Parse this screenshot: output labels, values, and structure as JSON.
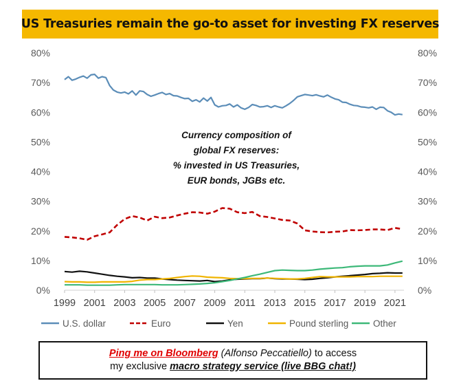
{
  "header": {
    "title": "US Treasuries remain the go-to asset for investing FX reserves"
  },
  "chart_data": {
    "type": "line",
    "title": "US Treasuries remain the go-to asset for investing FX reserves",
    "annotation": [
      "Currency composition of",
      "global FX reserves:",
      "% invested in US Treasuries,",
      "EUR bonds, JGBs etc."
    ],
    "x_ticks": [
      "1999",
      "2001",
      "2003",
      "2005",
      "2007",
      "2009",
      "2011",
      "2013",
      "2015",
      "2017",
      "2019",
      "2021"
    ],
    "y_ticks": [
      "0%",
      "10%",
      "20%",
      "30%",
      "40%",
      "50%",
      "60%",
      "70%",
      "80%"
    ],
    "xlim": [
      1999,
      2021.6
    ],
    "ylim": [
      0,
      80
    ],
    "legend_position": "bottom",
    "series": [
      {
        "name": "U.S. dollar",
        "color": "#5b8db8",
        "dash": "solid",
        "x": [
          1999,
          1999.25,
          1999.5,
          1999.75,
          2000,
          2000.25,
          2000.5,
          2000.75,
          2001,
          2001.25,
          2001.5,
          2001.75,
          2002,
          2002.25,
          2002.5,
          2002.75,
          2003,
          2003.25,
          2003.5,
          2003.75,
          2004,
          2004.25,
          2004.5,
          2004.75,
          2005,
          2005.25,
          2005.5,
          2005.75,
          2006,
          2006.25,
          2006.5,
          2006.75,
          2007,
          2007.25,
          2007.5,
          2007.75,
          2008,
          2008.25,
          2008.5,
          2008.75,
          2009,
          2009.25,
          2009.5,
          2009.75,
          2010,
          2010.25,
          2010.5,
          2010.75,
          2011,
          2011.25,
          2011.5,
          2011.75,
          2012,
          2012.25,
          2012.5,
          2012.75,
          2013,
          2013.25,
          2013.5,
          2013.75,
          2014,
          2014.25,
          2014.5,
          2014.75,
          2015,
          2015.25,
          2015.5,
          2015.75,
          2016,
          2016.25,
          2016.5,
          2016.75,
          2017,
          2017.25,
          2017.5,
          2017.75,
          2018,
          2018.25,
          2018.5,
          2018.75,
          2019,
          2019.25,
          2019.5,
          2019.75,
          2020,
          2020.25,
          2020.5,
          2020.75,
          2021,
          2021.25,
          2021.5
        ],
        "values": [
          71,
          72,
          70.8,
          71.2,
          71.8,
          72.2,
          71.5,
          72.6,
          72.8,
          71.5,
          72,
          71.7,
          69,
          67.5,
          66.8,
          66.5,
          66.8,
          66.2,
          67.2,
          65.8,
          67.2,
          67,
          66,
          65.4,
          65.8,
          66.3,
          66.7,
          66,
          66.3,
          65.6,
          65.5,
          65,
          64.6,
          64.7,
          63.7,
          64.2,
          63.5,
          64.8,
          63.8,
          65,
          62.5,
          61.8,
          62.2,
          62.3,
          62.8,
          61.8,
          62.5,
          61.5,
          61,
          61.6,
          62.6,
          62.3,
          61.8,
          61.9,
          62.2,
          61.6,
          62.2,
          61.8,
          61.5,
          62.2,
          63,
          64,
          65.2,
          65.6,
          66,
          65.8,
          65.6,
          65.9,
          65.5,
          65.2,
          65.8,
          65.1,
          64.5,
          64.2,
          63.4,
          63.3,
          62.7,
          62.3,
          62.2,
          61.8,
          61.7,
          61.5,
          61.8,
          61,
          61.7,
          61.6,
          60.5,
          60,
          59.1,
          59.4,
          59.2
        ]
      },
      {
        "name": "Euro",
        "color": "#c00000",
        "dash": "dashed",
        "x": [
          1999,
          1999.5,
          2000,
          2000.5,
          2001,
          2001.5,
          2002,
          2002.5,
          2003,
          2003.5,
          2004,
          2004.5,
          2005,
          2005.5,
          2006,
          2006.5,
          2007,
          2007.5,
          2008,
          2008.5,
          2009,
          2009.5,
          2010,
          2010.5,
          2011,
          2011.5,
          2012,
          2012.5,
          2013,
          2013.5,
          2014,
          2014.5,
          2015,
          2015.5,
          2016,
          2016.5,
          2017,
          2017.5,
          2018,
          2018.5,
          2019,
          2019.5,
          2020,
          2020.5,
          2021,
          2021.5
        ],
        "values": [
          18,
          17.8,
          17.5,
          17,
          18.2,
          18.8,
          19.5,
          22,
          24,
          25,
          24.5,
          23.5,
          24.8,
          24.3,
          24.5,
          25.2,
          25.8,
          26.3,
          26.2,
          25.8,
          26.5,
          27.7,
          27.5,
          26.3,
          26,
          26.4,
          25,
          24.7,
          24.2,
          23.7,
          23.5,
          22.5,
          20.2,
          19.8,
          19.6,
          19.5,
          19.7,
          19.8,
          20.3,
          20.2,
          20.3,
          20.5,
          20.5,
          20.3,
          21,
          20.6
        ]
      },
      {
        "name": "Yen",
        "color": "#111111",
        "dash": "solid",
        "x": [
          1999,
          1999.5,
          2000,
          2000.5,
          2001,
          2001.5,
          2002,
          2002.5,
          2003,
          2003.5,
          2004,
          2004.5,
          2005,
          2005.5,
          2006,
          2006.5,
          2007,
          2007.5,
          2008,
          2008.5,
          2009,
          2009.5,
          2010,
          2010.5,
          2011,
          2011.5,
          2012,
          2012.5,
          2013,
          2013.5,
          2014,
          2014.5,
          2015,
          2015.5,
          2016,
          2016.5,
          2017,
          2017.5,
          2018,
          2018.5,
          2019,
          2019.5,
          2020,
          2020.5,
          2021,
          2021.5
        ],
        "values": [
          6.3,
          6.1,
          6.4,
          6.2,
          5.8,
          5.4,
          5.0,
          4.7,
          4.5,
          4.2,
          4.3,
          4.1,
          4.1,
          3.8,
          3.6,
          3.4,
          3.3,
          3.2,
          3.1,
          3.3,
          2.9,
          3.1,
          3.5,
          3.7,
          3.8,
          3.9,
          3.9,
          4.1,
          3.9,
          3.8,
          3.8,
          3.7,
          3.6,
          3.7,
          4.0,
          4.2,
          4.5,
          4.7,
          4.9,
          5.1,
          5.3,
          5.6,
          5.7,
          5.9,
          5.8,
          5.8
        ]
      },
      {
        "name": "Pound sterling",
        "color": "#f0b400",
        "dash": "solid",
        "x": [
          1999,
          1999.5,
          2000,
          2000.5,
          2001,
          2001.5,
          2002,
          2002.5,
          2003,
          2003.5,
          2004,
          2004.5,
          2005,
          2005.5,
          2006,
          2006.5,
          2007,
          2007.5,
          2008,
          2008.5,
          2009,
          2009.5,
          2010,
          2010.5,
          2011,
          2011.5,
          2012,
          2012.5,
          2013,
          2013.5,
          2014,
          2014.5,
          2015,
          2015.5,
          2016,
          2016.5,
          2017,
          2017.5,
          2018,
          2018.5,
          2019,
          2019.5,
          2020,
          2020.5,
          2021,
          2021.5
        ],
        "values": [
          2.9,
          2.8,
          2.8,
          2.7,
          2.7,
          2.8,
          2.8,
          2.8,
          2.8,
          3.0,
          3.4,
          3.6,
          3.6,
          3.8,
          4.0,
          4.3,
          4.6,
          4.8,
          4.7,
          4.4,
          4.3,
          4.2,
          4.0,
          3.9,
          3.9,
          4.0,
          4.0,
          4.1,
          4.0,
          3.9,
          3.8,
          3.8,
          4.0,
          4.3,
          4.6,
          4.5,
          4.5,
          4.5,
          4.5,
          4.6,
          4.6,
          4.6,
          4.7,
          4.7,
          4.7,
          4.7
        ]
      },
      {
        "name": "Other",
        "color": "#3cb878",
        "dash": "solid",
        "x": [
          1999,
          1999.5,
          2000,
          2000.5,
          2001,
          2001.5,
          2002,
          2002.5,
          2003,
          2003.5,
          2004,
          2004.5,
          2005,
          2005.5,
          2006,
          2006.5,
          2007,
          2007.5,
          2008,
          2008.5,
          2009,
          2009.5,
          2010,
          2010.5,
          2011,
          2011.5,
          2012,
          2012.5,
          2013,
          2013.5,
          2014,
          2014.5,
          2015,
          2015.5,
          2016,
          2016.5,
          2017,
          2017.5,
          2018,
          2018.5,
          2019,
          2019.5,
          2020,
          2020.5,
          2021,
          2021.5
        ],
        "values": [
          1.8,
          1.8,
          1.8,
          1.7,
          1.7,
          1.7,
          1.7,
          1.8,
          1.9,
          1.9,
          1.9,
          1.9,
          1.9,
          1.8,
          1.8,
          1.8,
          1.9,
          2.0,
          2.1,
          2.3,
          2.5,
          2.9,
          3.3,
          3.8,
          4.3,
          4.9,
          5.4,
          6.0,
          6.6,
          6.8,
          6.7,
          6.6,
          6.6,
          6.8,
          7.1,
          7.3,
          7.5,
          7.6,
          7.9,
          8.1,
          8.2,
          8.2,
          8.2,
          8.5,
          9.2,
          9.8
        ]
      }
    ]
  },
  "footer": {
    "link": "Ping me on Bloomberg",
    "name": " (Alfonso Peccatiello)",
    "rest1": " to access",
    "line2_pre": "my exclusive ",
    "service": "macro strategy service (live BBG chat!)"
  }
}
